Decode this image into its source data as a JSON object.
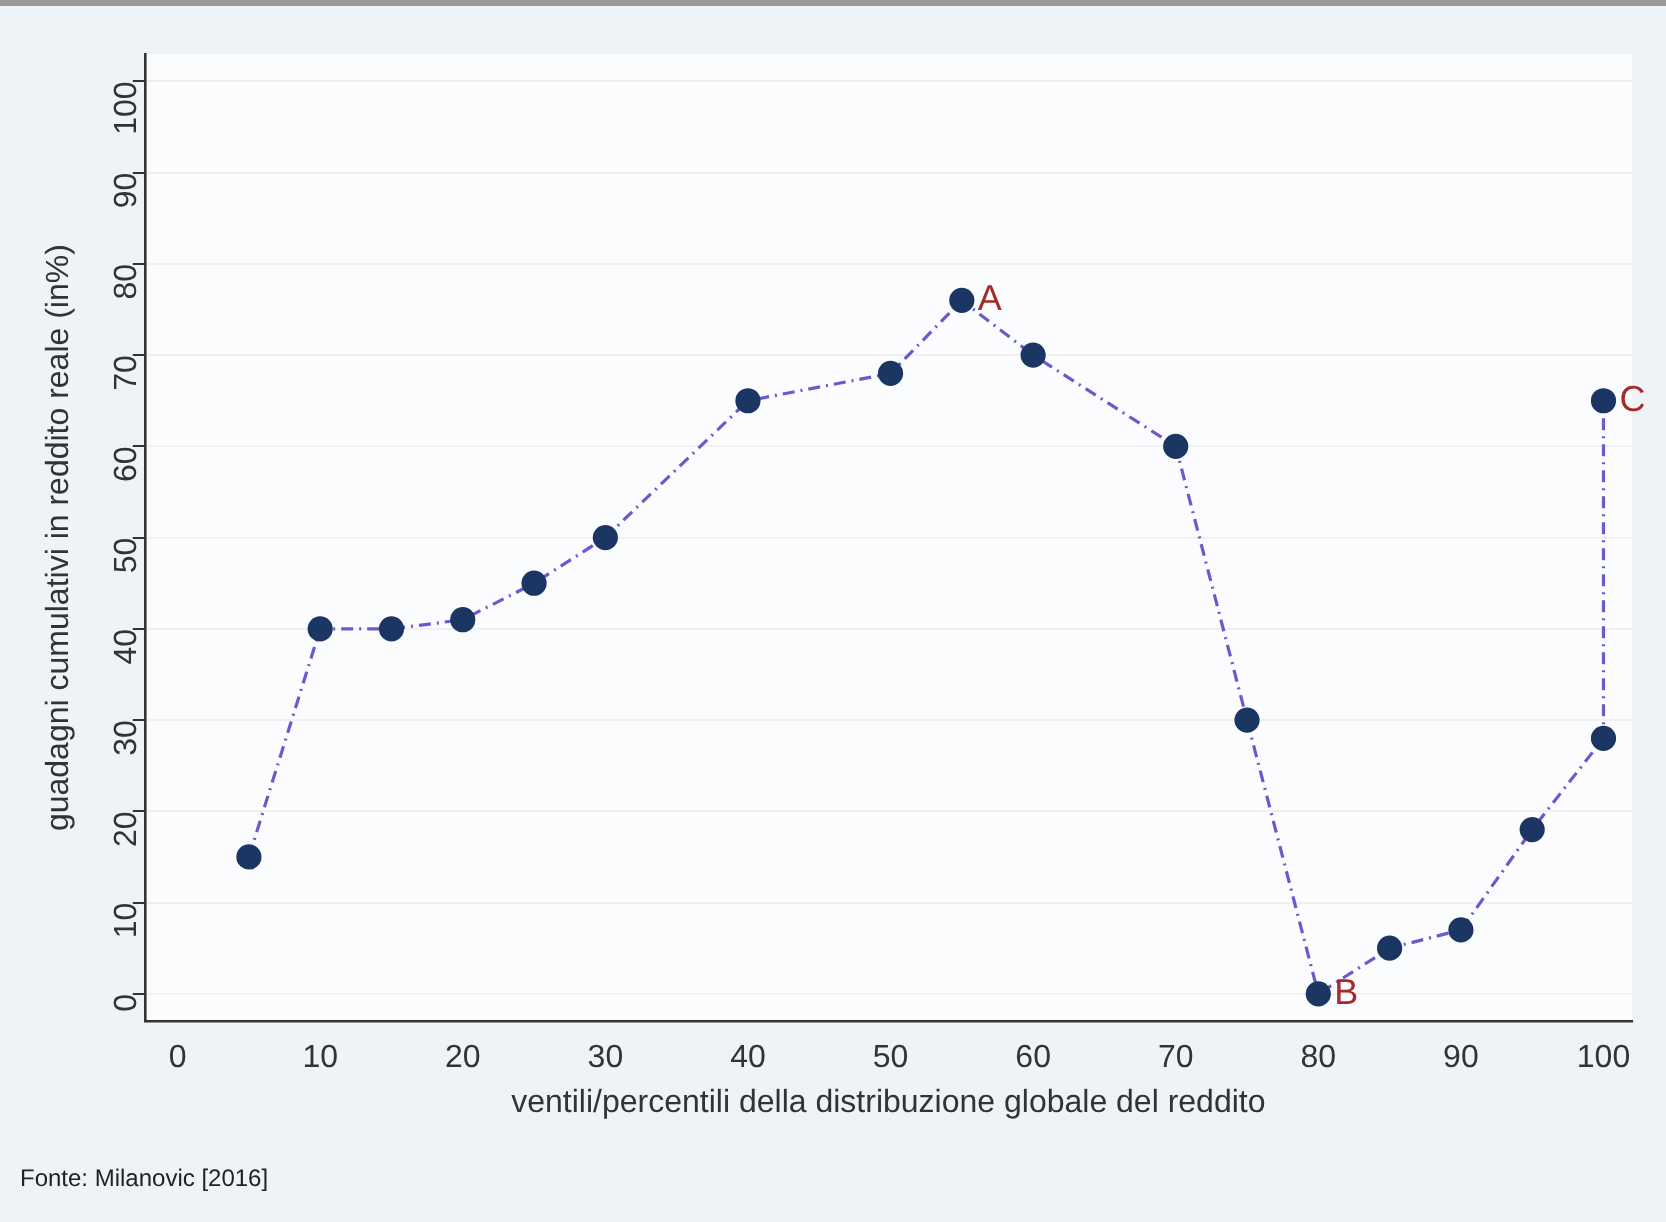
{
  "chart_data": {
    "type": "line",
    "xlabel": "ventili/percentili della distribuzione globale del reddito",
    "ylabel": "guadagni cumulativi in reddito reale (in%)",
    "x": [
      5,
      10,
      15,
      20,
      25,
      30,
      40,
      50,
      55,
      60,
      70,
      75,
      80,
      85,
      90,
      95,
      100,
      100
    ],
    "series": [
      {
        "color": "#6a5acd",
        "values": [
          15,
          40,
          40,
          41,
          45,
          50,
          65,
          68,
          76,
          70,
          60,
          30,
          0,
          5,
          7,
          18,
          28,
          65
        ]
      }
    ],
    "marker": "circle",
    "line_style": "dashed",
    "grid": "y",
    "legend": false,
    "xlim": [
      -2.3,
      102
    ],
    "ylim": [
      -3,
      103
    ],
    "xticks": [
      0,
      10,
      20,
      30,
      40,
      50,
      60,
      70,
      80,
      90,
      100
    ],
    "yticks": [
      0,
      10,
      20,
      30,
      40,
      50,
      60,
      70,
      80,
      90,
      100
    ],
    "annotations": [
      {
        "text": "A",
        "x": 55,
        "y": 76
      },
      {
        "text": "B",
        "x": 80,
        "y": 0
      },
      {
        "text": "C",
        "x": 100,
        "y": 65
      },
      "Fonte: Milanovic [2016]"
    ]
  }
}
